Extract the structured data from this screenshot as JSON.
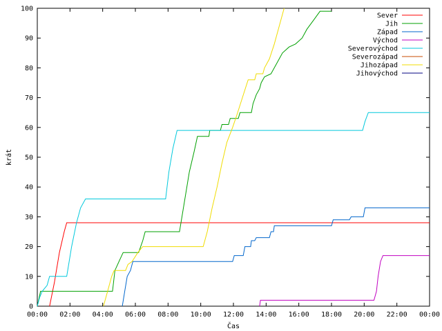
{
  "chart_data": {
    "type": "line",
    "xlabel": "Čas",
    "ylabel": "krát",
    "ylim": [
      0,
      100
    ],
    "xlim": [
      0,
      24
    ],
    "grid": false,
    "legend_position": "top-right",
    "x_unit": "hours",
    "y_ticks": [
      "0",
      "10",
      "20",
      "30",
      "40",
      "50",
      "60",
      "70",
      "80",
      "90",
      "100"
    ],
    "x_ticks": [
      "00:00",
      "02:00",
      "04:00",
      "06:00",
      "08:00",
      "10:00",
      "12:00",
      "14:00",
      "16:00",
      "18:00",
      "20:00",
      "22:00",
      "00:00"
    ],
    "series": [
      {
        "name": "Sever",
        "color": "#ff0000",
        "points": [
          [
            0.75,
            0
          ],
          [
            1.05,
            8
          ],
          [
            1.35,
            18
          ],
          [
            1.65,
            25
          ],
          [
            1.8,
            28
          ],
          [
            24,
            28
          ]
        ]
      },
      {
        "name": "Jih",
        "color": "#00a000",
        "points": [
          [
            0,
            0
          ],
          [
            0.2,
            5
          ],
          [
            4.6,
            5
          ],
          [
            4.75,
            12
          ],
          [
            5.0,
            15
          ],
          [
            5.25,
            18
          ],
          [
            6.2,
            18
          ],
          [
            6.45,
            22
          ],
          [
            6.6,
            25
          ],
          [
            8.7,
            25
          ],
          [
            9.0,
            35
          ],
          [
            9.3,
            45
          ],
          [
            9.6,
            52
          ],
          [
            9.8,
            57
          ],
          [
            10.5,
            57
          ],
          [
            10.55,
            59
          ],
          [
            11.2,
            59
          ],
          [
            11.3,
            61
          ],
          [
            11.7,
            61
          ],
          [
            11.8,
            63
          ],
          [
            12.3,
            63
          ],
          [
            12.4,
            65
          ],
          [
            13.1,
            65
          ],
          [
            13.2,
            68
          ],
          [
            13.4,
            71
          ],
          [
            13.6,
            73
          ],
          [
            13.7,
            75
          ],
          [
            13.9,
            77
          ],
          [
            14.3,
            78
          ],
          [
            14.7,
            82
          ],
          [
            15.0,
            85
          ],
          [
            15.4,
            87
          ],
          [
            15.8,
            88
          ],
          [
            16.2,
            90
          ],
          [
            16.5,
            93
          ],
          [
            16.9,
            96
          ],
          [
            17.3,
            99
          ],
          [
            18.0,
            99
          ]
        ]
      },
      {
        "name": "Západ",
        "color": "#0066cc",
        "points": [
          [
            5.2,
            0
          ],
          [
            5.35,
            5
          ],
          [
            5.5,
            10
          ],
          [
            5.7,
            12
          ],
          [
            5.85,
            15
          ],
          [
            11.95,
            15
          ],
          [
            12.05,
            17
          ],
          [
            12.6,
            17
          ],
          [
            12.7,
            20
          ],
          [
            13.05,
            20
          ],
          [
            13.1,
            22
          ],
          [
            13.3,
            22
          ],
          [
            13.4,
            23
          ],
          [
            14.2,
            23
          ],
          [
            14.3,
            25
          ],
          [
            14.45,
            25
          ],
          [
            14.5,
            27
          ],
          [
            18.0,
            27
          ],
          [
            18.1,
            29
          ],
          [
            19.1,
            29
          ],
          [
            19.2,
            30
          ],
          [
            19.95,
            30
          ],
          [
            20.05,
            33
          ],
          [
            24,
            33
          ]
        ]
      },
      {
        "name": "Východ",
        "color": "#c000c0",
        "points": [
          [
            13.6,
            0
          ],
          [
            13.65,
            2
          ],
          [
            20.6,
            2
          ],
          [
            20.75,
            5
          ],
          [
            20.85,
            10
          ],
          [
            21.0,
            15
          ],
          [
            21.15,
            17
          ],
          [
            24,
            17
          ]
        ]
      },
      {
        "name": "Severovýchod",
        "color": "#00c8dc",
        "points": [
          [
            0,
            0
          ],
          [
            0.15,
            3
          ],
          [
            0.3,
            5
          ],
          [
            0.6,
            7
          ],
          [
            0.75,
            10
          ],
          [
            1.8,
            10
          ],
          [
            2.1,
            20
          ],
          [
            2.4,
            28
          ],
          [
            2.65,
            33
          ],
          [
            2.95,
            36
          ],
          [
            7.85,
            36
          ],
          [
            8.05,
            45
          ],
          [
            8.3,
            53
          ],
          [
            8.55,
            59
          ],
          [
            19.9,
            59
          ],
          [
            20.05,
            62
          ],
          [
            20.25,
            65
          ],
          [
            24,
            65
          ]
        ]
      },
      {
        "name": "Severozápad",
        "color": "#c84b00",
        "points": []
      },
      {
        "name": "Jihozápad",
        "color": "#f0dc00",
        "points": [
          [
            4.05,
            0
          ],
          [
            4.3,
            5
          ],
          [
            4.55,
            10
          ],
          [
            4.7,
            12
          ],
          [
            5.4,
            12
          ],
          [
            5.55,
            14
          ],
          [
            5.8,
            15
          ],
          [
            6.15,
            18
          ],
          [
            6.45,
            20
          ],
          [
            10.15,
            20
          ],
          [
            10.4,
            25
          ],
          [
            10.7,
            33
          ],
          [
            11.0,
            40
          ],
          [
            11.3,
            48
          ],
          [
            11.6,
            55
          ],
          [
            11.95,
            60
          ],
          [
            12.2,
            64
          ],
          [
            12.55,
            70
          ],
          [
            12.9,
            76
          ],
          [
            13.3,
            76
          ],
          [
            13.4,
            78
          ],
          [
            13.8,
            78
          ],
          [
            13.9,
            80
          ],
          [
            14.2,
            83
          ],
          [
            14.5,
            88
          ],
          [
            14.8,
            94
          ],
          [
            15.1,
            100
          ]
        ]
      },
      {
        "name": "Jihovýchod",
        "color": "#000080",
        "points": []
      }
    ]
  }
}
